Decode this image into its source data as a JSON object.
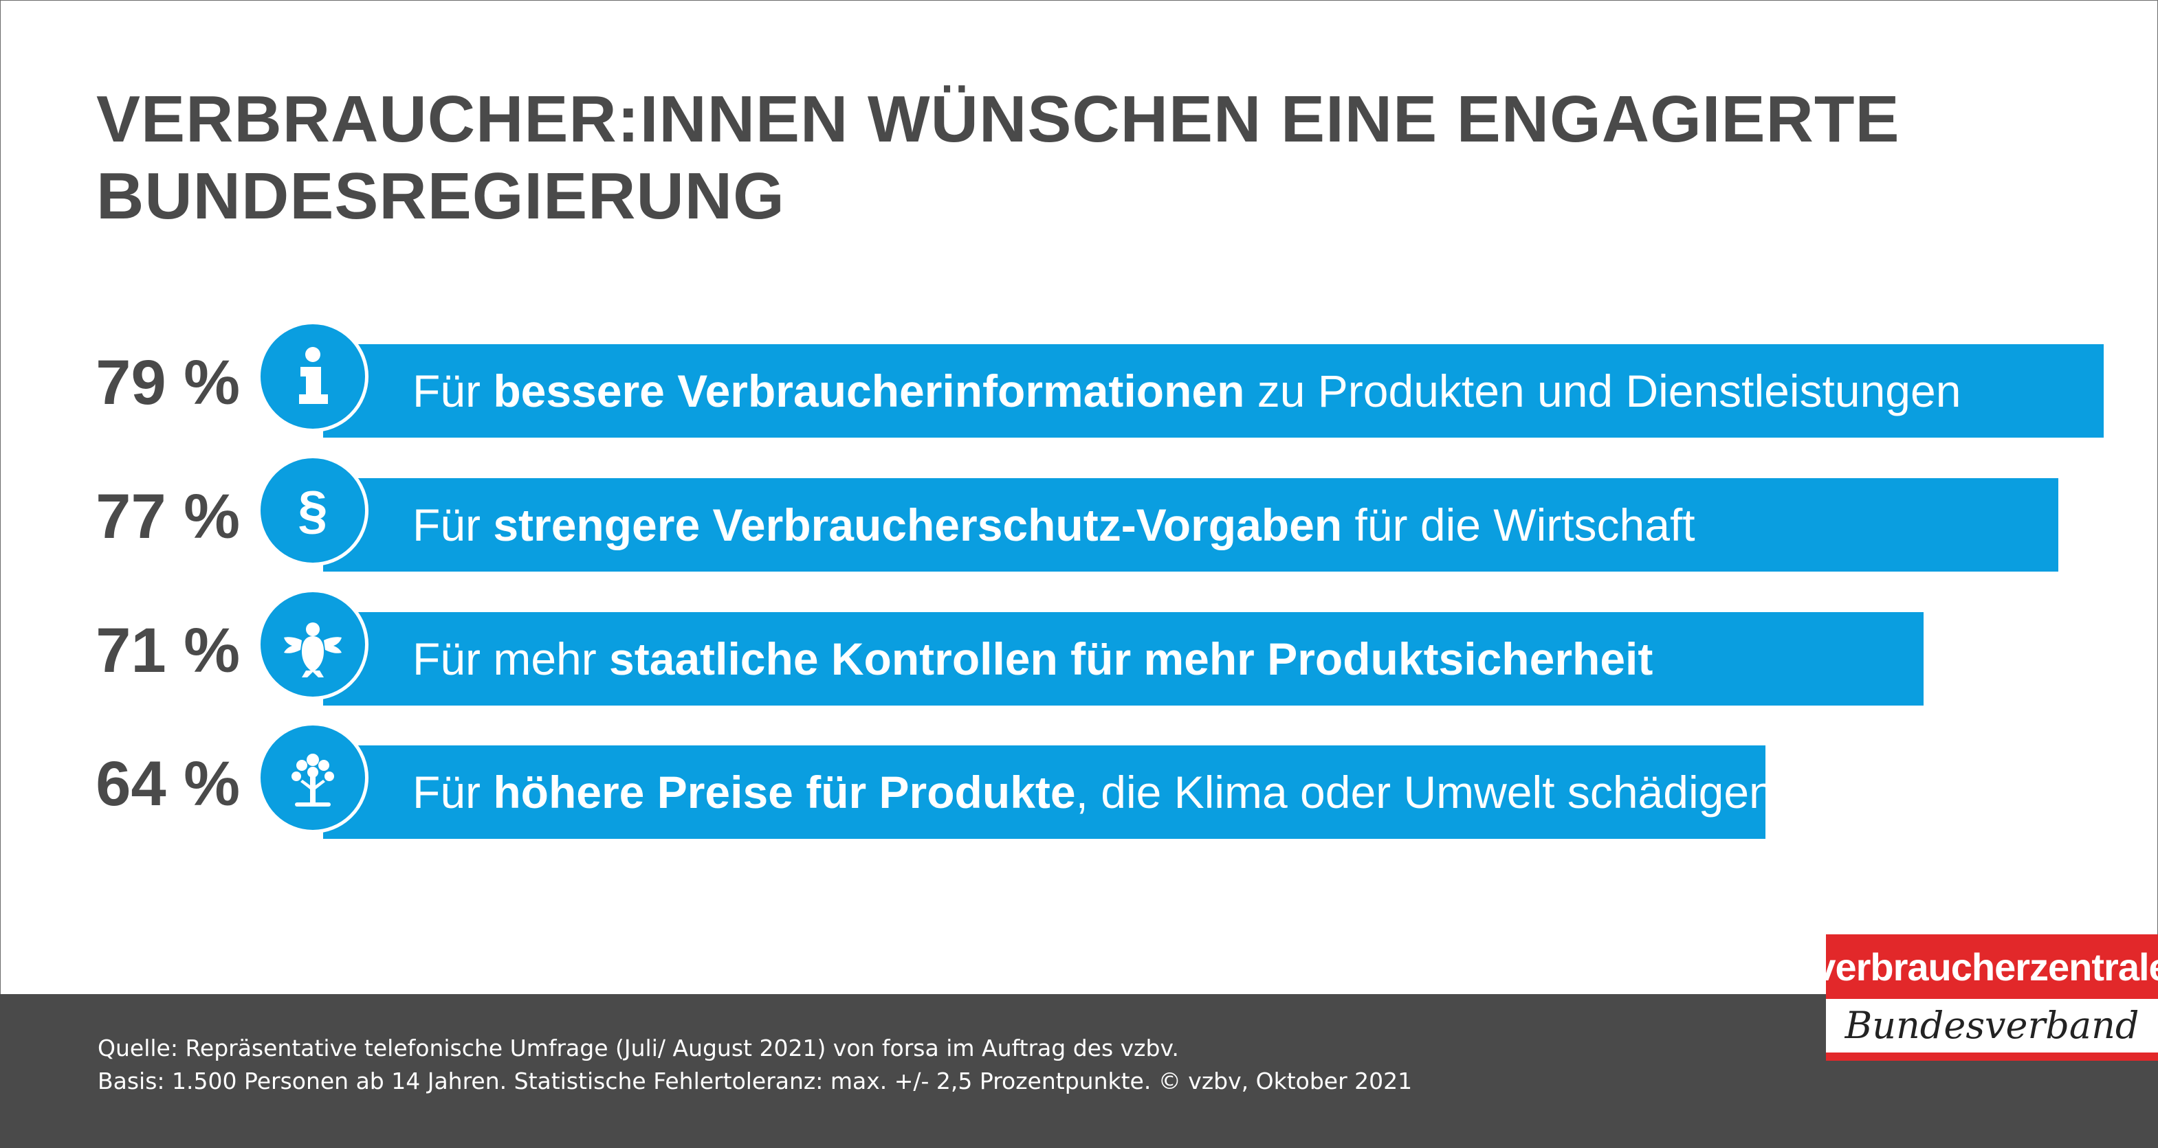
{
  "title_line1": "VERBRAUCHER:INNEN WÜNSCHEN EINE ENGAGIERTE",
  "title_line2": "BUNDESREGIERUNG",
  "colors": {
    "bar": "#0a9ee0",
    "text_dark": "#4a4a4a",
    "footer": "#4a4a4a",
    "logo_red": "#e2282a"
  },
  "chart_data": {
    "type": "bar",
    "orientation": "horizontal",
    "title": "VERBRAUCHER:INNEN WÜNSCHEN EINE ENGAGIERTE BUNDESREGIERUNG",
    "items": [
      {
        "value": 79,
        "label": "79 %",
        "icon": "info-icon",
        "pre": "Für ",
        "bold": "bessere Verbraucherinformationen",
        "post": " zu Produkten und Dienstleistungen"
      },
      {
        "value": 77,
        "label": "77 %",
        "icon": "paragraph-icon",
        "pre": "Für ",
        "bold": "strengere Verbraucherschutz-Vorgaben",
        "post": " für die Wirtschaft"
      },
      {
        "value": 71,
        "label": "71 %",
        "icon": "federal-eagle-icon",
        "pre": "Für mehr ",
        "bold": "staatliche Kontrollen für mehr Produktsicherheit",
        "post": ""
      },
      {
        "value": 64,
        "label": "64 %",
        "icon": "tree-icon",
        "pre": "Für ",
        "bold": "höhere Preise für Produkte",
        "post": ", die Klima oder Umwelt schädigen"
      }
    ]
  },
  "footer": {
    "source_line1": "Quelle: Repräsentative telefonische Umfrage (Juli/ August 2021) von forsa im Auftrag des vzbv.",
    "source_line2": "Basis: 1.500 Personen ab 14 Jahren. Statistische Fehlertoleranz: max. +/- 2,5 Prozentpunkte. © vzbv, Oktober 2021"
  },
  "logo": {
    "line1": "verbraucherzentrale",
    "line2": "Bundesverband"
  }
}
